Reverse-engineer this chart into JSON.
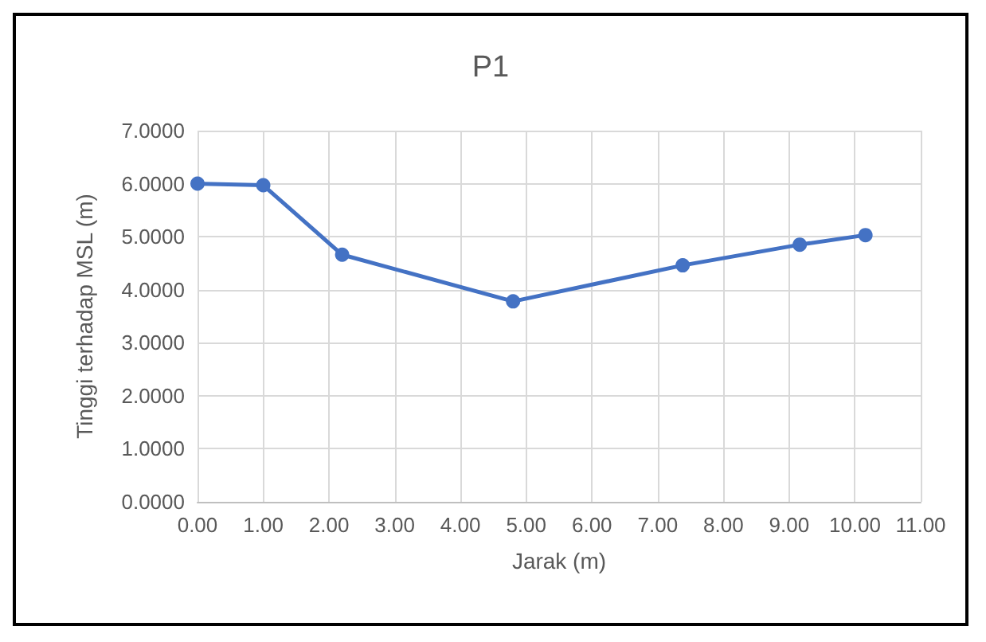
{
  "chart_data": {
    "type": "line",
    "title": "P1",
    "xlabel": "Jarak (m)",
    "ylabel": "Tinggi terhadap MSL (m)",
    "x": [
      0,
      1,
      2.2,
      4.8,
      7.38,
      9.16,
      10.16
    ],
    "series": [
      {
        "color": "#4472c4",
        "values": [
          6.0,
          5.97,
          4.66,
          3.78,
          4.46,
          4.85,
          5.03
        ]
      }
    ],
    "xlim": [
      0,
      11
    ],
    "xticks": [
      {
        "value": 0,
        "label": "0.00"
      },
      {
        "value": 1,
        "label": "1.00"
      },
      {
        "value": 2,
        "label": "2.00"
      },
      {
        "value": 3,
        "label": "3.00"
      },
      {
        "value": 4,
        "label": "4.00"
      },
      {
        "value": 5,
        "label": "5.00"
      },
      {
        "value": 6,
        "label": "6.00"
      },
      {
        "value": 7,
        "label": "7.00"
      },
      {
        "value": 8,
        "label": "8.00"
      },
      {
        "value": 9,
        "label": "9.00"
      },
      {
        "value": 10,
        "label": "10.00"
      },
      {
        "value": 11,
        "label": "11.00"
      }
    ],
    "ylim": [
      0,
      7
    ],
    "yticks": [
      {
        "value": 0,
        "label": "0.0000"
      },
      {
        "value": 1,
        "label": "1.0000"
      },
      {
        "value": 2,
        "label": "2.0000"
      },
      {
        "value": 3,
        "label": "3.0000"
      },
      {
        "value": 4,
        "label": "4.0000"
      },
      {
        "value": 5,
        "label": "5.0000"
      },
      {
        "value": 6,
        "label": "6.0000"
      },
      {
        "value": 7,
        "label": "7.0000"
      }
    ],
    "grid": true,
    "marker": "circle",
    "line_style": "solid"
  }
}
